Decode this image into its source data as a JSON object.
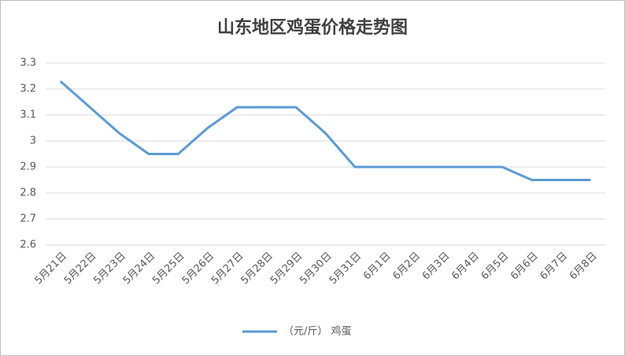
{
  "chart_data": {
    "type": "line",
    "title": "山东地区鸡蛋价格走势图",
    "categories": [
      "5月21日",
      "5月22日",
      "5月23日",
      "5月24日",
      "5月25日",
      "5月26日",
      "5月27日",
      "5月28日",
      "5月29日",
      "5月30日",
      "5月31日",
      "6月1日",
      "6月2日",
      "6月3日",
      "6月4日",
      "6月5日",
      "6月6日",
      "6月7日",
      "6月8日"
    ],
    "series": [
      {
        "name": "（元/斤） 鸡蛋",
        "color": "#5b9bd5",
        "values": [
          3.23,
          3.13,
          3.03,
          2.95,
          2.95,
          3.05,
          3.13,
          3.13,
          3.13,
          3.03,
          2.9,
          2.9,
          2.9,
          2.9,
          2.9,
          2.9,
          2.85,
          2.85,
          2.85
        ]
      }
    ],
    "ylim": [
      2.6,
      3.3
    ],
    "yticks": [
      2.6,
      2.7,
      2.8,
      2.9,
      3,
      3.1,
      3.2,
      3.3
    ],
    "grid": true,
    "legend": "bottom"
  }
}
